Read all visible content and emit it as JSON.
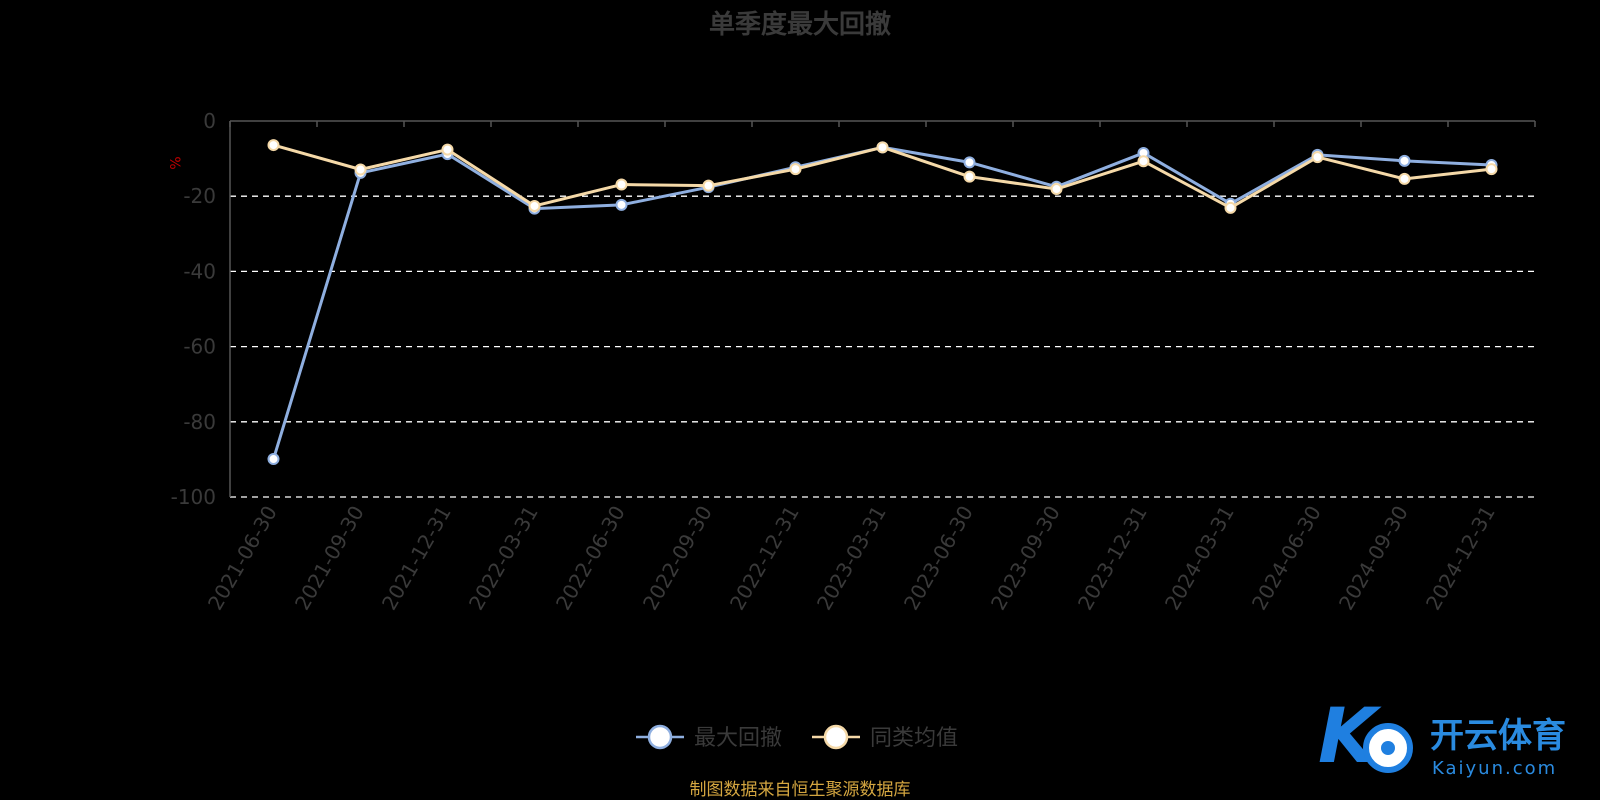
{
  "chart_data": {
    "type": "line",
    "title": "单季度最大回撤",
    "ylabel": "%",
    "ylim": [
      -100,
      0
    ],
    "yticks": [
      0,
      -20,
      -40,
      -60,
      -80,
      -100
    ],
    "grid": true,
    "legend_position": "bottom-center",
    "categories": [
      "2021-06-30",
      "2021-09-30",
      "2021-12-31",
      "2022-03-31",
      "2022-06-30",
      "2022-09-30",
      "2022-12-31",
      "2023-03-31",
      "2023-06-30",
      "2023-09-30",
      "2023-12-31",
      "2024-03-31",
      "2024-06-30",
      "2024-09-30",
      "2024-12-31"
    ],
    "series": [
      {
        "name": "最大回撤",
        "color": "#8fafe0",
        "values": [
          -89.9,
          -13.8,
          -8.8,
          -23.3,
          -22.3,
          -17.6,
          -12.3,
          -7.0,
          -11.0,
          -17.5,
          -8.5,
          -22.0,
          -9.0,
          -10.6,
          -11.7
        ]
      },
      {
        "name": "同类均值",
        "color": "#f5d9a8",
        "values": [
          -6.4,
          -12.9,
          -7.6,
          -22.6,
          -16.9,
          -17.2,
          -12.8,
          -7.0,
          -14.8,
          -18.1,
          -10.7,
          -23.1,
          -9.6,
          -15.4,
          -12.8
        ]
      }
    ]
  },
  "source_note": "制图数据来自恒生聚源数据库",
  "watermark": {
    "brand_cn": "开云体育",
    "brand_en": "Kaiyun.com",
    "logo_letter": "K"
  }
}
